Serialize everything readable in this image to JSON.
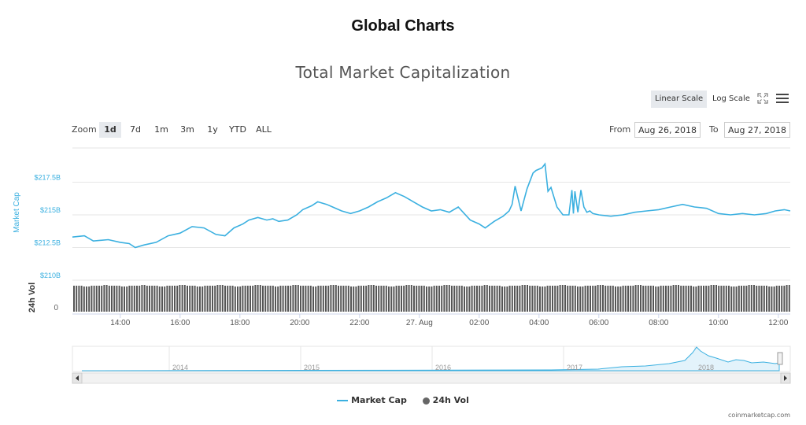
{
  "page": {
    "title": "Global Charts",
    "credits": "coinmarketcap.com"
  },
  "controls": {
    "scales": [
      "Linear Scale",
      "Log Scale"
    ],
    "active_scale": "Linear Scale",
    "zoom_label": "Zoom",
    "zoom_buttons": [
      "1d",
      "7d",
      "1m",
      "3m",
      "1y",
      "YTD",
      "ALL"
    ],
    "active_zoom": "1d",
    "from_label": "From",
    "from_value": "Aug 26, 2018",
    "to_label": "To",
    "to_value": "Aug 27, 2018"
  },
  "chart_data": {
    "type": "line",
    "title": "Total Market Capitalization",
    "series_color": "#3bb0e0",
    "volume_color": "#555555",
    "y_axis": {
      "label": "Market Cap",
      "ticks": [
        "$217.5B",
        "$215B",
        "$212.5B",
        "$210B"
      ],
      "tick_values": [
        217.5,
        215,
        212.5,
        210
      ],
      "ylim": [
        210,
        220
      ],
      "unit": "$B"
    },
    "volume_axis": {
      "label": "24h Vol",
      "ticks": [
        "0"
      ]
    },
    "x_axis": {
      "ticks": [
        "14:00",
        "16:00",
        "18:00",
        "20:00",
        "22:00",
        "27. Aug",
        "02:00",
        "04:00",
        "06:00",
        "08:00",
        "10:00",
        "12:00"
      ],
      "start_hour": 12.4,
      "end_hour": 36.4,
      "tick_hours": [
        14,
        16,
        18,
        20,
        22,
        24,
        26,
        28,
        30,
        32,
        34,
        36
      ]
    },
    "series": [
      {
        "name": "Market Cap",
        "x": [
          12.4,
          12.8,
          13.1,
          13.6,
          14.0,
          14.3,
          14.5,
          14.8,
          15.2,
          15.6,
          16.0,
          16.4,
          16.8,
          17.2,
          17.5,
          17.8,
          18.1,
          18.3,
          18.6,
          18.9,
          19.1,
          19.3,
          19.6,
          19.9,
          20.1,
          20.4,
          20.6,
          20.9,
          21.1,
          21.4,
          21.7,
          22.0,
          22.3,
          22.6,
          22.9,
          23.2,
          23.5,
          23.8,
          24.1,
          24.4,
          24.7,
          25.0,
          25.3,
          25.5,
          25.7,
          26.0,
          26.2,
          26.5,
          26.8,
          27.0,
          27.1,
          27.2,
          27.4,
          27.6,
          27.8,
          27.9,
          28.1,
          28.2,
          28.3,
          28.4,
          28.6,
          28.8,
          29.0,
          29.1,
          29.15,
          29.2,
          29.3,
          29.4,
          29.5,
          29.6,
          29.7,
          29.8,
          30.0,
          30.4,
          30.8,
          31.2,
          31.6,
          32.0,
          32.4,
          32.8,
          33.2,
          33.6,
          34.0,
          34.4,
          34.8,
          35.2,
          35.6,
          35.9,
          36.2,
          36.4
        ],
        "values": [
          213.3,
          213.4,
          213.0,
          213.1,
          212.9,
          212.8,
          212.5,
          212.7,
          212.9,
          213.4,
          213.6,
          214.1,
          214.0,
          213.5,
          213.4,
          214.0,
          214.3,
          214.6,
          214.8,
          214.6,
          214.7,
          214.5,
          214.6,
          215.0,
          215.4,
          215.7,
          216.0,
          215.8,
          215.6,
          215.3,
          215.1,
          215.3,
          215.6,
          216.0,
          216.3,
          216.7,
          216.4,
          216.0,
          215.6,
          215.3,
          215.4,
          215.2,
          215.6,
          215.1,
          214.6,
          214.3,
          214.0,
          214.5,
          214.9,
          215.3,
          215.8,
          217.2,
          215.3,
          217.0,
          218.2,
          218.4,
          218.6,
          218.9,
          216.8,
          217.1,
          215.6,
          215.0,
          215.0,
          216.9,
          215.1,
          216.8,
          215.2,
          216.9,
          215.6,
          215.2,
          215.3,
          215.1,
          215.0,
          214.9,
          215.0,
          215.2,
          215.3,
          215.4,
          215.6,
          215.8,
          215.6,
          215.5,
          215.1,
          215.0,
          215.1,
          215.0,
          215.1,
          215.3,
          215.4,
          215.3
        ]
      }
    ],
    "legend": [
      "Market Cap",
      "24h Vol"
    ],
    "navigator": {
      "labels": [
        "2014",
        "2015",
        "2016",
        "2017",
        "2018"
      ]
    }
  }
}
